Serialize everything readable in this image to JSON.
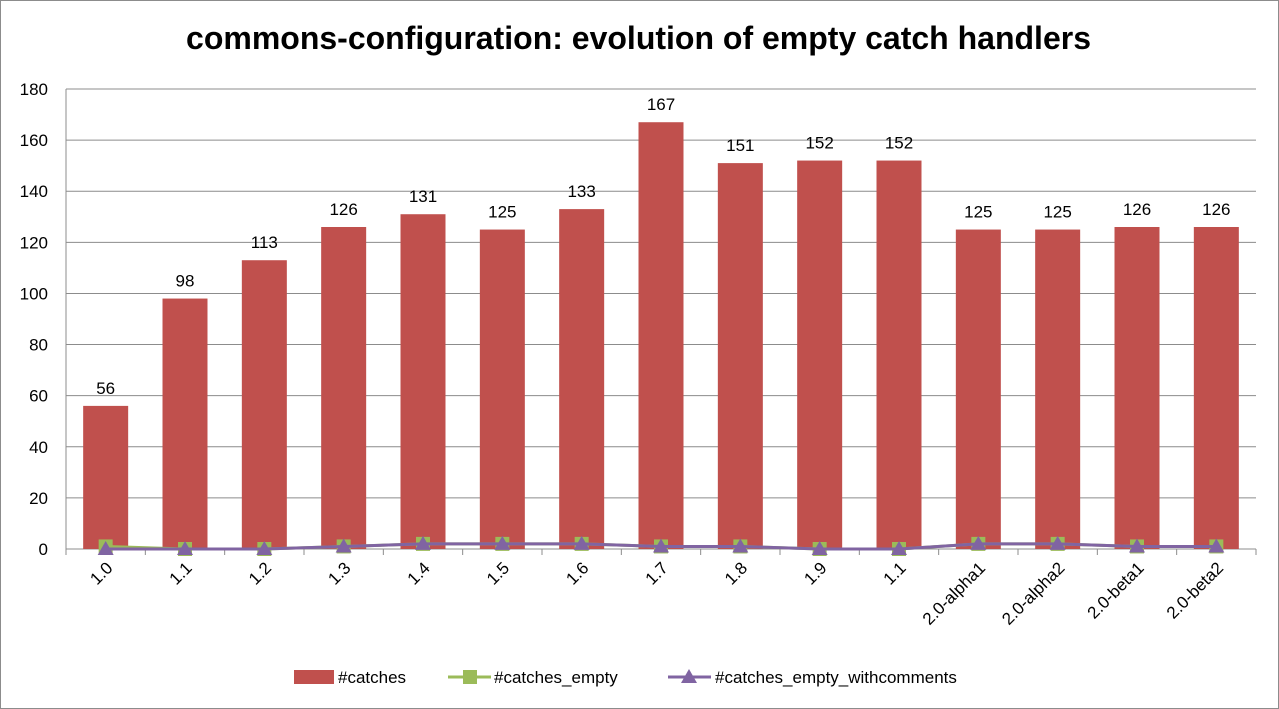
{
  "chart_data": {
    "type": "bar",
    "title": "commons-configuration: evolution of empty catch handlers",
    "categories": [
      "1.0",
      "1.1",
      "1.2",
      "1.3",
      "1.4",
      "1.5",
      "1.6",
      "1.7",
      "1.8",
      "1.9",
      "1.1",
      "2.0-alpha1",
      "2.0-alpha2",
      "2.0-beta1",
      "2.0-beta2"
    ],
    "ylim": [
      0,
      180
    ],
    "yticks": [
      0,
      20,
      40,
      60,
      80,
      100,
      120,
      140,
      160,
      180
    ],
    "grid": true,
    "legend_position": "bottom",
    "series": [
      {
        "name": "#catches",
        "type": "bar",
        "color": "#c0504d",
        "values": [
          56,
          98,
          113,
          126,
          131,
          125,
          133,
          167,
          151,
          152,
          152,
          125,
          125,
          126,
          126
        ]
      },
      {
        "name": "#catches_empty",
        "type": "line",
        "marker": "square",
        "color": "#9bbb59",
        "values": [
          1,
          0,
          0,
          1,
          2,
          2,
          2,
          1,
          1,
          0,
          0,
          2,
          2,
          1,
          1
        ]
      },
      {
        "name": "#catches_empty_withcomments",
        "type": "line",
        "marker": "triangle",
        "color": "#8064a2",
        "values": [
          0,
          0,
          0,
          1,
          2,
          2,
          2,
          1,
          1,
          0,
          0,
          2,
          2,
          1,
          1
        ]
      }
    ]
  }
}
